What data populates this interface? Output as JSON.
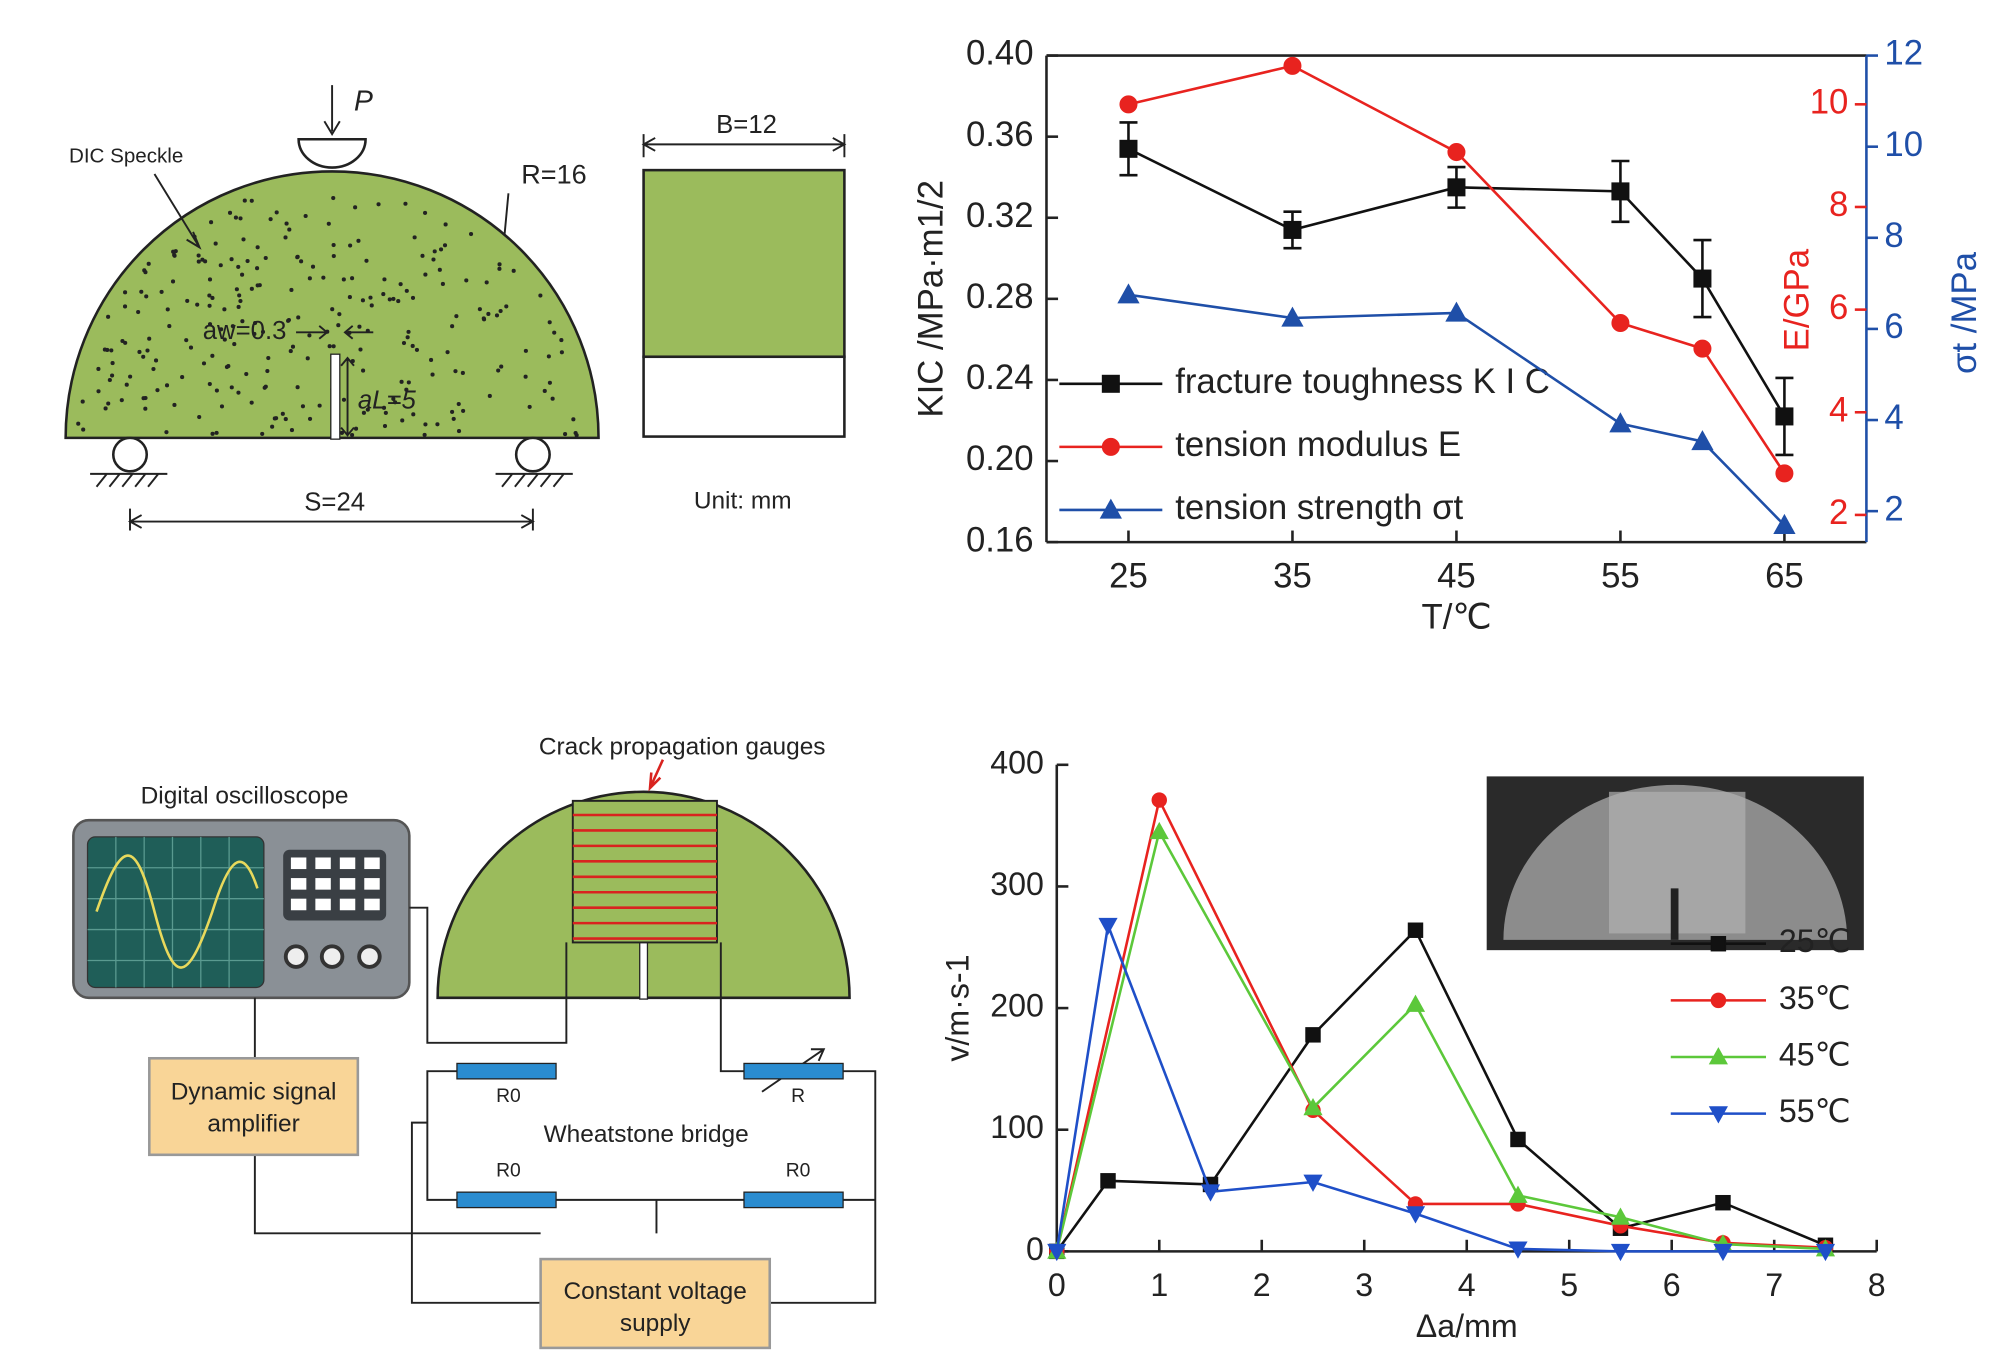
{
  "diagram_specimen": {
    "load": "P",
    "speckle": "DIC Speckle",
    "radius": "R=16",
    "notch_width": "aw=0.3",
    "notch_length": "aL=5",
    "span": "S=24",
    "thickness": "B=12",
    "unit": "Unit: mm"
  },
  "diagram_setup": {
    "oscilloscope": "Digital oscilloscope",
    "gauges": "Crack propagation gauges",
    "amplifier": [
      "Dynamic signal",
      "amplifier"
    ],
    "bridge": "Wheatstone bridge",
    "resistors": [
      "R0",
      "R",
      "R0",
      "R0"
    ],
    "supply": [
      "Constant voltage",
      "supply"
    ]
  },
  "chart_data": [
    {
      "type": "line",
      "x_label": "T/℃",
      "y_label": "KIC /MPa·m1/2",
      "y2_label": "E/GPa",
      "y3_label": "σt /MPa",
      "box": true,
      "legend": "lower left",
      "x": [
        25,
        35,
        45,
        55,
        60,
        65
      ],
      "xlim": [
        20,
        70
      ],
      "xticks": [
        25,
        35,
        45,
        55,
        65
      ],
      "ylim": [
        0.16,
        0.4
      ],
      "yticks": [
        0.16,
        {
          "value": 0.2,
          "label": "0.20"
        },
        0.24,
        0.28,
        0.32,
        0.36,
        {
          "value": 0.4,
          "label": "0.40"
        }
      ],
      "y2lim": [
        1.47,
        10.95
      ],
      "y2ticks": [
        2,
        4,
        6,
        8,
        10
      ],
      "y3lim": [
        1.32,
        12
      ],
      "y3ticks": [
        2,
        4,
        6,
        8,
        10,
        12
      ],
      "series": [
        {
          "name": "fracture toughness K I C",
          "color": "#111111",
          "marker": "square",
          "values": [
            0.354,
            0.314,
            0.335,
            0.333,
            0.29,
            0.222
          ],
          "errors": [
            0.013,
            0.009,
            0.01,
            0.015,
            0.019,
            0.019
          ]
        },
        {
          "name": "tension modulus E",
          "color": "#e8231f",
          "marker": "circle",
          "axis": "y2",
          "values": [
            10.0,
            10.75,
            9.07,
            5.74,
            5.24,
            2.81
          ]
        },
        {
          "name": "tension strength σt",
          "color": "#1f4fa8",
          "marker": "triangle-up",
          "axis": "y3",
          "values": [
            6.75,
            6.24,
            6.35,
            3.92,
            3.53,
            1.69
          ]
        }
      ]
    },
    {
      "type": "line",
      "x_label": "Δa/mm",
      "y_label": "v/m·s-1",
      "box": false,
      "legend": "center right",
      "xlim": [
        0,
        8
      ],
      "xticks": [
        0,
        1,
        2,
        3,
        4,
        5,
        6,
        7,
        8
      ],
      "ylim": [
        0,
        400
      ],
      "yticks": [
        0,
        100,
        200,
        300,
        400
      ],
      "series": [
        {
          "name": "25℃",
          "color": "#111111",
          "marker": "square",
          "x": [
            0,
            0.5,
            1.5,
            2.5,
            3.5,
            4.5,
            5.5,
            6.5,
            7.5
          ],
          "values": [
            0,
            58,
            55,
            178,
            264,
            92,
            19,
            40,
            5
          ]
        },
        {
          "name": "35℃",
          "color": "#e8231f",
          "marker": "circle",
          "x": [
            0,
            1,
            2.5,
            3.5,
            4.5,
            5.5,
            6.5,
            7.5
          ],
          "values": [
            0,
            371,
            116,
            39,
            39,
            21,
            7,
            3
          ]
        },
        {
          "name": "45℃",
          "color": "#5cc83a",
          "marker": "triangle-up",
          "x": [
            0,
            1,
            2.5,
            3.5,
            4.5,
            5.5,
            6.5,
            7.5
          ],
          "values": [
            0,
            345,
            118,
            203,
            46,
            28,
            6,
            2
          ]
        },
        {
          "name": "55℃",
          "color": "#1f4fc8",
          "marker": "triangle-down",
          "x": [
            0,
            0.5,
            1.5,
            2.5,
            3.5,
            4.5,
            5.5,
            6.5,
            7.5
          ],
          "values": [
            0,
            268,
            49,
            57,
            31,
            2,
            0,
            0,
            0
          ]
        }
      ]
    }
  ]
}
